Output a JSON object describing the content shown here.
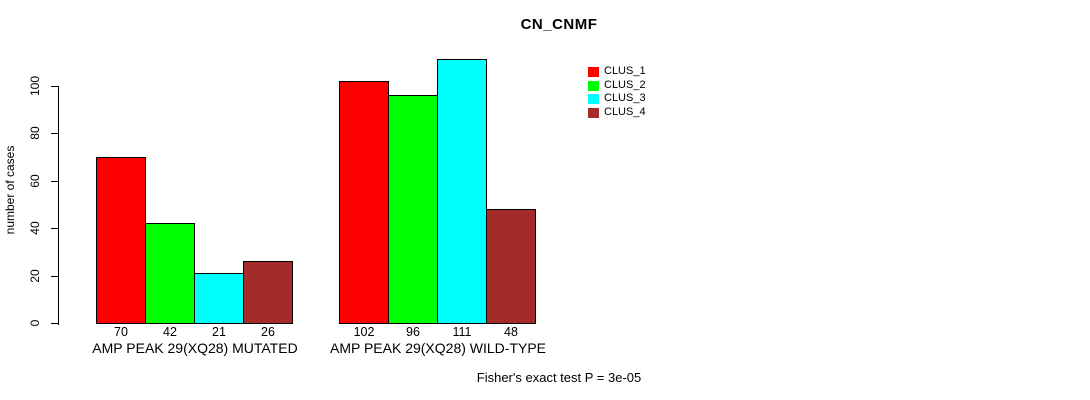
{
  "chart_data": {
    "type": "bar",
    "title": "CN_CNMF",
    "ylabel": "number of cases",
    "xlabel": "",
    "yticks": [
      0,
      20,
      40,
      60,
      80,
      100
    ],
    "ylim": [
      0,
      115
    ],
    "grid": false,
    "legend_position": "top-right",
    "categories": [
      "AMP PEAK 29(XQ28) MUTATED",
      "AMP PEAK 29(XQ28) WILD-TYPE"
    ],
    "series": [
      {
        "name": "CLUS_1",
        "color": "#FF0000",
        "values": [
          70,
          102
        ]
      },
      {
        "name": "CLUS_2",
        "color": "#00FF00",
        "values": [
          42,
          96
        ]
      },
      {
        "name": "CLUS_3",
        "color": "#00FFFF",
        "values": [
          21,
          111
        ]
      },
      {
        "name": "CLUS_4",
        "color": "#A52A2A",
        "values": [
          26,
          48
        ]
      }
    ],
    "bar_value_labels": [
      [
        70,
        42,
        21,
        26
      ],
      [
        102,
        96,
        111,
        48
      ]
    ],
    "annotation": "Fisher's exact test P = 3e-05"
  },
  "colors": {
    "background": "#FFFFFF",
    "text": "#000000",
    "bar_border": "#000000",
    "axis": "#000000"
  }
}
